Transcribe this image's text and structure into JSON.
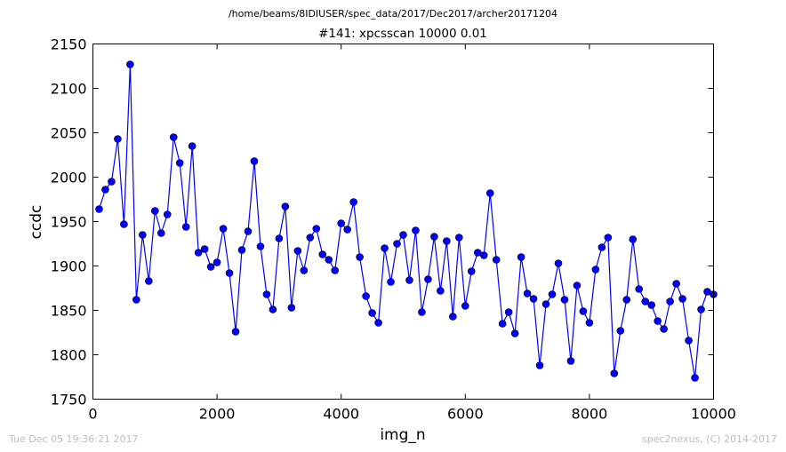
{
  "header": {
    "path": "/home/beams/8IDIUSER/spec_data/2017/Dec2017/archer20171204"
  },
  "footer": {
    "timestamp": "Tue Dec 05 19:36:21 2017",
    "credit": "spec2nexus, (C) 2014-2017"
  },
  "chart_data": {
    "type": "line",
    "title": "#141: xpcsscan 10000 0.01",
    "xlabel": "img_n",
    "ylabel": "ccdc",
    "xlim": [
      0,
      10000
    ],
    "ylim": [
      1750,
      2150
    ],
    "xticks": [
      0,
      2000,
      4000,
      6000,
      8000,
      10000
    ],
    "yticks": [
      1750,
      1800,
      1850,
      1900,
      1950,
      2000,
      2050,
      2100,
      2150
    ],
    "xtick_labels": [
      "0",
      "2000",
      "4000",
      "6000",
      "8000",
      "10000"
    ],
    "ytick_labels": [
      "1750",
      "1800",
      "1850",
      "1900",
      "1950",
      "2000",
      "2050",
      "2100",
      "2150"
    ],
    "grid": false,
    "line_color": "#0000ff",
    "marker": "circle",
    "series": [
      {
        "x": [
          100,
          200,
          300,
          400,
          500,
          600,
          700,
          800,
          900,
          1000,
          1100,
          1200,
          1300,
          1400,
          1500,
          1600,
          1700,
          1800,
          1900,
          2000,
          2100,
          2200,
          2300,
          2400,
          2500,
          2600,
          2700,
          2800,
          2900,
          3000,
          3100,
          3200,
          3300,
          3400,
          3500,
          3600,
          3700,
          3800,
          3900,
          4000,
          4100,
          4200,
          4300,
          4400,
          4500,
          4600,
          4700,
          4800,
          4900,
          5000,
          5100,
          5200,
          5300,
          5400,
          5500,
          5600,
          5700,
          5800,
          5900,
          6000,
          6100,
          6200,
          6300,
          6400,
          6500,
          6600,
          6700,
          6800,
          6900,
          7000,
          7100,
          7200,
          7300,
          7400,
          7500,
          7600,
          7700,
          7800,
          7900,
          8000,
          8100,
          8200,
          8300,
          8400,
          8500,
          8600,
          8700,
          8800,
          8900,
          9000,
          9100,
          9200,
          9300,
          9400,
          9500,
          9600,
          9700,
          9800,
          9900,
          10000
        ],
        "y": [
          1964,
          1986,
          1995,
          2043,
          1947,
          2127,
          1862,
          1935,
          1883,
          1962,
          1937,
          1958,
          2045,
          2016,
          1944,
          2035,
          1915,
          1919,
          1899,
          1904,
          1942,
          1892,
          1826,
          1918,
          1939,
          2018,
          1922,
          1868,
          1851,
          1931,
          1967,
          1853,
          1917,
          1895,
          1932,
          1942,
          1913,
          1907,
          1895,
          1948,
          1941,
          1972,
          1910,
          1866,
          1847,
          1836,
          1920,
          1882,
          1925,
          1935,
          1884,
          1940,
          1848,
          1885,
          1933,
          1872,
          1928,
          1843,
          1932,
          1855,
          1894,
          1915,
          1912,
          1982,
          1907,
          1835,
          1848,
          1824,
          1910,
          1869,
          1863,
          1788,
          1857,
          1868,
          1903,
          1862,
          1793,
          1878,
          1849,
          1836,
          1896,
          1921,
          1932,
          1779,
          1827,
          1862,
          1930,
          1874,
          1860,
          1856,
          1838,
          1829,
          1860,
          1880,
          1863,
          1816,
          1774,
          1851,
          1871,
          1868
        ]
      }
    ]
  }
}
